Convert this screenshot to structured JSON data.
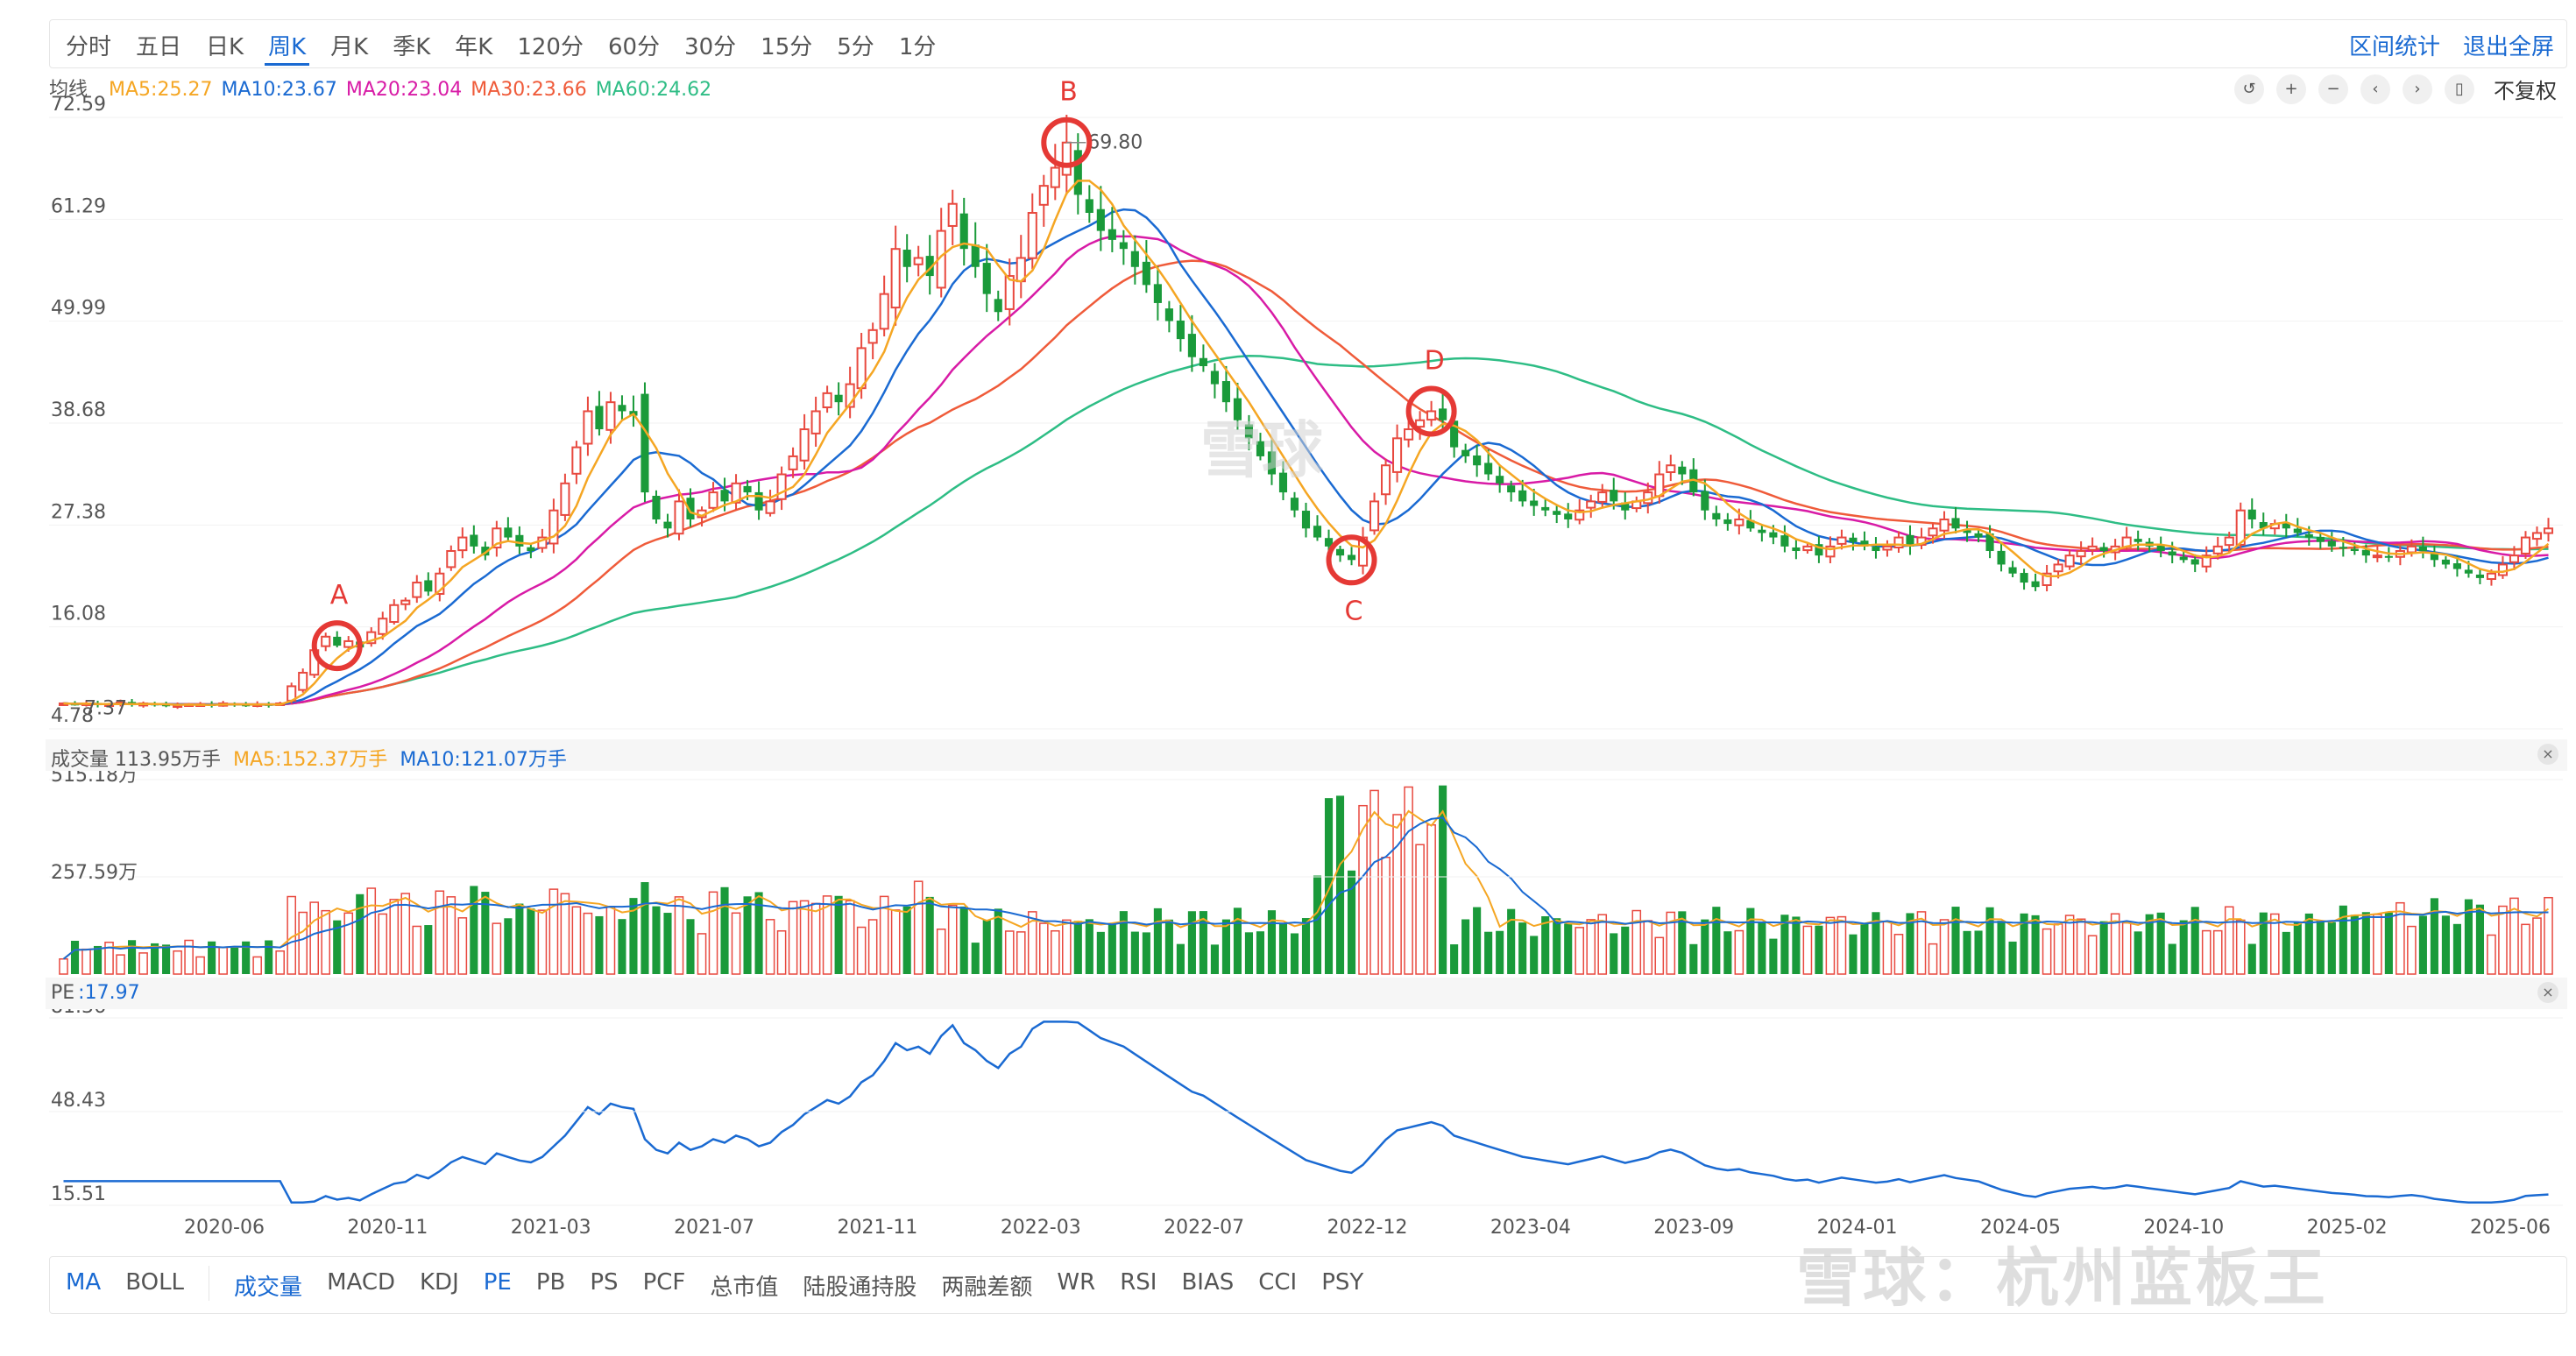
{
  "toolbar": {
    "tabs": [
      "分时",
      "五日",
      "日K",
      "周K",
      "月K",
      "季K",
      "年K",
      "120分",
      "60分",
      "30分",
      "15分",
      "5分",
      "1分"
    ],
    "active_tab": "周K",
    "interval_stats": "区间统计",
    "exit_fullscreen": "退出全屏",
    "fuquan": "不复权"
  },
  "ma_legend": {
    "title": "均线",
    "items": [
      {
        "label": "MA5:25.27",
        "color": "#f5a623"
      },
      {
        "label": "MA10:23.67",
        "color": "#1a6ad2"
      },
      {
        "label": "MA20:23.04",
        "color": "#d81ba6"
      },
      {
        "label": "MA30:23.66",
        "color": "#ef5b3a"
      },
      {
        "label": "MA60:24.62",
        "color": "#2ebd85"
      }
    ]
  },
  "volume_header": {
    "label": "成交量 113.95万手",
    "ma5": "MA5:152.37万手",
    "ma10": "MA10:121.07万手"
  },
  "pe_header": {
    "label": "PE",
    "value": ":17.97"
  },
  "watermark": {
    "center": "雪球",
    "bottom": "雪球：杭州蓝板王"
  },
  "indicators": [
    "MA",
    "BOLL",
    "成交量",
    "MACD",
    "KDJ",
    "PE",
    "PB",
    "PS",
    "PCF",
    "总市值",
    "陆股通持股",
    "两融差额",
    "WR",
    "RSI",
    "BIAS",
    "CCI",
    "PSY"
  ],
  "active_indicators": [
    "MA",
    "成交量",
    "PE"
  ],
  "chart_data": [
    {
      "type": "candlestick",
      "y_ticks": [
        "72.59",
        "61.29",
        "49.99",
        "38.68",
        "27.38",
        "16.08",
        "4.78"
      ],
      "ylim": [
        4.78,
        72.59
      ],
      "max_label": "69.80",
      "min_label": "7.37",
      "annotations": [
        "A",
        "B",
        "C",
        "D"
      ],
      "weekly_close_approx": [
        7.6,
        7.5,
        7.6,
        7.4,
        7.5,
        7.7,
        7.4,
        7.6,
        7.5,
        7.3,
        7.4,
        7.5,
        7.5,
        7.4,
        7.6,
        7.5,
        7.4,
        7.5,
        7.4,
        7.6,
        9.5,
        11,
        13.5,
        15,
        14,
        14.5,
        13.8,
        15.5,
        17,
        18.5,
        19,
        21,
        20,
        22,
        24.5,
        26,
        25,
        24,
        27,
        26,
        25,
        24.5,
        26,
        29,
        32,
        36,
        40,
        38,
        41,
        40,
        39.5,
        31,
        28,
        27,
        30,
        28,
        29,
        31,
        30,
        32,
        31,
        29,
        30,
        33,
        35,
        38,
        40,
        42,
        41,
        43,
        47,
        49,
        53,
        58,
        56,
        57,
        55,
        60,
        63,
        58,
        56,
        53,
        51,
        55,
        57,
        62,
        65,
        67,
        69.8,
        64,
        62,
        60,
        59,
        58,
        56,
        54,
        52,
        50,
        48,
        46,
        45,
        43,
        41,
        39,
        37,
        35,
        33,
        31,
        29,
        27,
        26,
        25,
        24,
        23.5,
        26,
        30,
        34,
        37,
        38,
        39,
        40,
        39,
        36,
        35,
        34,
        33,
        32,
        31,
        30,
        29.5,
        29,
        28.5,
        28,
        29,
        30,
        31,
        30,
        29,
        30,
        31,
        33,
        34,
        33,
        31,
        29,
        28,
        27.5,
        28,
        27,
        26.5,
        26,
        25,
        24.5,
        25,
        24,
        25,
        26,
        25.5,
        25,
        24.5,
        25,
        26,
        25,
        26,
        27,
        28,
        27,
        26.5,
        26,
        24.5,
        23,
        22,
        21,
        20.5,
        22,
        23,
        24,
        24.5,
        25,
        24.5,
        25,
        26,
        25.5,
        25,
        24.5,
        24,
        23.5,
        23,
        24,
        25,
        26,
        29,
        28,
        27,
        27.5,
        27,
        26.5,
        26,
        25.5,
        25,
        24.8,
        24.5,
        24,
        24,
        23.8,
        24.5,
        25,
        24.5,
        23.5,
        23,
        22.5,
        22,
        21.5,
        22,
        23,
        24,
        26,
        26.5,
        27
      ],
      "ma_colors": {
        "MA5": "#f5a623",
        "MA10": "#1a6ad2",
        "MA20": "#d81ba6",
        "MA30": "#ef5b3a",
        "MA60": "#2ebd85"
      }
    },
    {
      "type": "bar",
      "y_ticks": [
        "515.18万",
        "257.59万"
      ],
      "ylim": [
        0,
        515.18
      ]
    },
    {
      "type": "line",
      "y_ticks": [
        "81.36",
        "48.43",
        "15.51"
      ],
      "ylim": [
        15.51,
        81.36
      ],
      "x_ticks": [
        "2020-06",
        "2020-11",
        "2021-03",
        "2021-07",
        "2021-11",
        "2022-03",
        "2022-07",
        "2022-12",
        "2023-04",
        "2023-09",
        "2024-01",
        "2024-05",
        "2024-10",
        "2025-02",
        "2025-06"
      ],
      "series_color": "#1a6ad2"
    }
  ]
}
